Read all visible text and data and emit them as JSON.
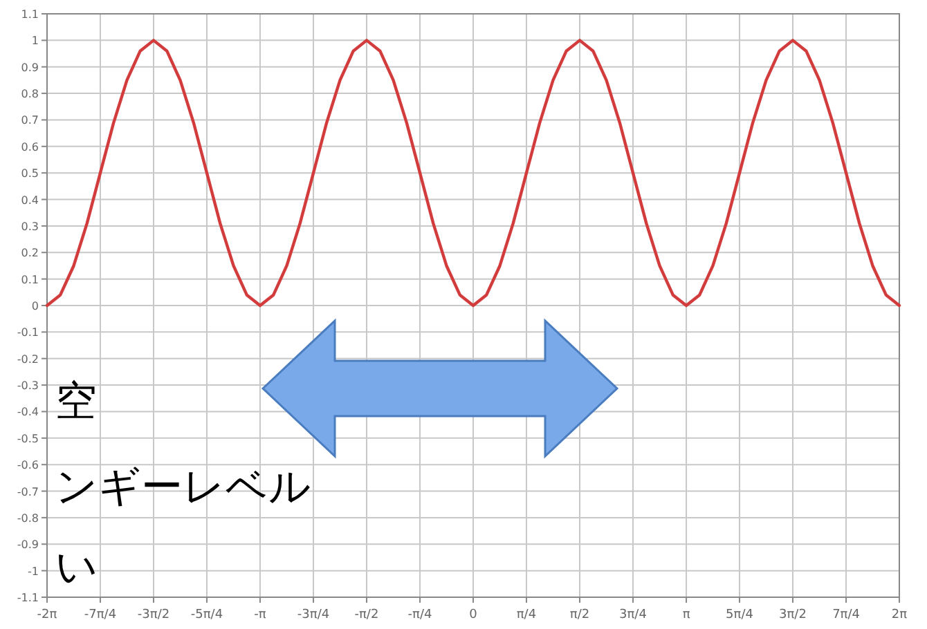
{
  "chart_data": {
    "type": "line",
    "x": [
      -6.283,
      -6.087,
      -5.89,
      -5.694,
      -5.498,
      -5.301,
      -5.105,
      -4.909,
      -4.712,
      -4.516,
      -4.32,
      -4.123,
      -3.927,
      -3.731,
      -3.534,
      -3.338,
      -3.142,
      -2.945,
      -2.749,
      -2.553,
      -2.356,
      -2.16,
      -1.963,
      -1.767,
      -1.571,
      -1.374,
      -1.178,
      -0.982,
      -0.785,
      -0.589,
      -0.393,
      -0.196,
      0,
      0.196,
      0.393,
      0.589,
      0.785,
      0.982,
      1.178,
      1.374,
      1.571,
      1.767,
      1.963,
      2.16,
      2.356,
      2.553,
      2.749,
      2.945,
      3.142,
      3.338,
      3.534,
      3.731,
      3.927,
      4.123,
      4.32,
      4.516,
      4.712,
      4.909,
      5.105,
      5.301,
      5.498,
      5.694,
      5.89,
      6.087,
      6.283
    ],
    "series": [
      {
        "color": "#d23c3c",
        "values": [
          0,
          0.04,
          0.15,
          0.31,
          0.5,
          0.69,
          0.85,
          0.96,
          1,
          0.96,
          0.85,
          0.69,
          0.5,
          0.31,
          0.15,
          0.04,
          0,
          0.04,
          0.15,
          0.31,
          0.5,
          0.69,
          0.85,
          0.96,
          1,
          0.96,
          0.85,
          0.69,
          0.5,
          0.31,
          0.15,
          0.04,
          0,
          0.04,
          0.15,
          0.31,
          0.5,
          0.69,
          0.85,
          0.96,
          1,
          0.96,
          0.85,
          0.69,
          0.5,
          0.31,
          0.15,
          0.04,
          0,
          0.04,
          0.15,
          0.31,
          0.5,
          0.69,
          0.85,
          0.96,
          1,
          0.96,
          0.85,
          0.69,
          0.5,
          0.31,
          0.15,
          0.04,
          0
        ]
      }
    ],
    "xlim": [
      -6.283,
      6.283
    ],
    "xticks": [
      {
        "value": -6.283,
        "label": "-2π"
      },
      {
        "value": -5.498,
        "label": "-7π/4"
      },
      {
        "value": -4.712,
        "label": "-3π/2"
      },
      {
        "value": -3.927,
        "label": "-5π/4"
      },
      {
        "value": -3.142,
        "label": "-π"
      },
      {
        "value": -2.356,
        "label": "-3π/4"
      },
      {
        "value": -1.571,
        "label": "-π/2"
      },
      {
        "value": -0.785,
        "label": "-π/4"
      },
      0,
      {
        "value": 0.785,
        "label": "π/4"
      },
      {
        "value": 1.571,
        "label": "π/2"
      },
      {
        "value": 2.356,
        "label": "3π/4"
      },
      {
        "value": 3.142,
        "label": "π"
      },
      {
        "value": 3.927,
        "label": "5π/4"
      },
      {
        "value": 4.712,
        "label": "3π/2"
      },
      {
        "value": 5.498,
        "label": "7π/4"
      },
      {
        "value": 6.283,
        "label": "2π"
      }
    ],
    "ylim": [
      -1.1,
      1.1
    ],
    "yticks": [
      -1.1,
      -1,
      -0.9,
      -0.8,
      -0.7,
      -0.6,
      -0.5,
      -0.4,
      -0.3,
      -0.2,
      -0.1,
      0,
      0.1,
      0.2,
      0.3,
      0.4,
      0.5,
      0.6,
      0.7,
      0.8,
      0.9,
      1,
      1.1
    ],
    "grid": true,
    "marker": "none",
    "line_style": "solid",
    "annotations": [
      "空",
      "ンギーレベル",
      "い"
    ]
  }
}
